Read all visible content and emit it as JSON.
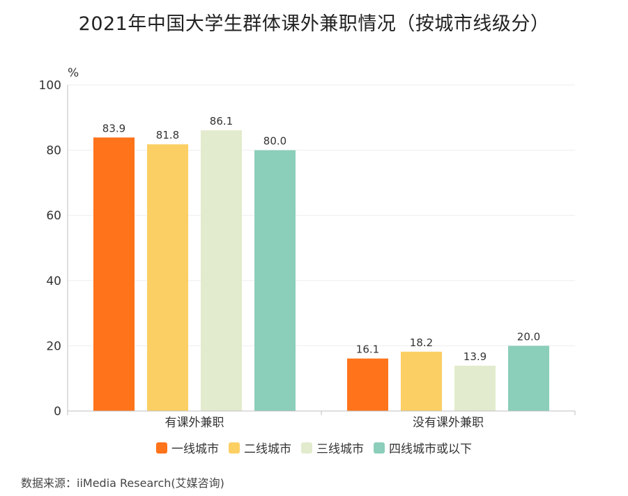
{
  "title": "2021年中国大学生群体课外兼职情况（按城市线级分）",
  "source": "数据来源：iiMedia Research(艾媒咨询)",
  "colors": {
    "series": [
      "#ff731a",
      "#fccf64",
      "#e2ebcd",
      "#8bceba"
    ],
    "axis": "#bfbfbf",
    "grid": "#eeeeee"
  },
  "chart_data": {
    "type": "bar",
    "title": "2021年中国大学生群体课外兼职情况（按城市线级分）",
    "ylabel": "%",
    "ylim": [
      0,
      100
    ],
    "yticks": [
      0,
      20,
      40,
      60,
      80,
      100
    ],
    "categories": [
      "有课外兼职",
      "没有课外兼职"
    ],
    "series": [
      {
        "name": "一线城市",
        "values": [
          83.9,
          16.1
        ]
      },
      {
        "name": "二线城市",
        "values": [
          81.8,
          18.2
        ]
      },
      {
        "name": "三线城市",
        "values": [
          86.1,
          13.9
        ]
      },
      {
        "name": "四线城市或以下",
        "values": [
          80.0,
          20.0
        ]
      }
    ],
    "grid": true,
    "legend": "bottom"
  }
}
